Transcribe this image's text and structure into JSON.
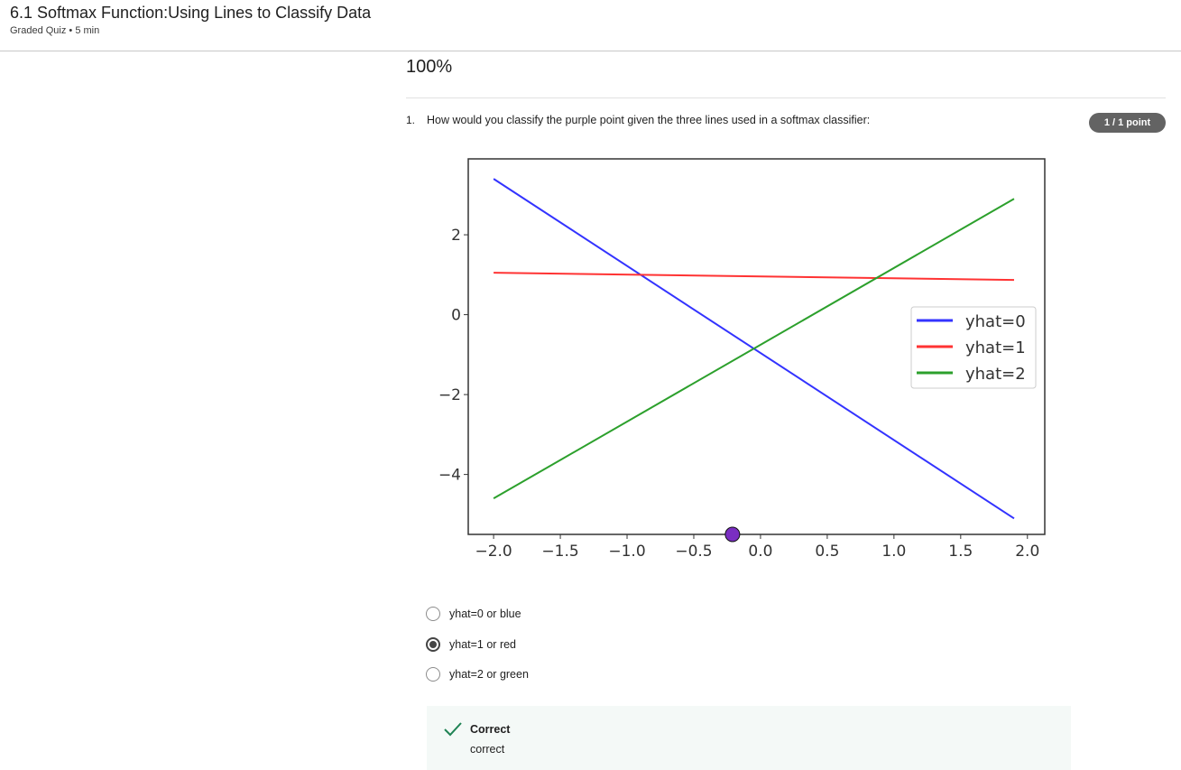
{
  "header": {
    "title": "6.1 Softmax Function:Using Lines to Classify Data",
    "subtitle": "Graded Quiz • 5 min"
  },
  "score": "100%",
  "question": {
    "number": "1.",
    "text": "How would you classify the purple point given the three lines used in a softmax classifier:",
    "points": "1 / 1 point"
  },
  "chart_data": {
    "type": "line",
    "title": "",
    "xlabel": "",
    "ylabel": "",
    "xlim": [
      -2.19,
      2.13
    ],
    "ylim": [
      -5.5,
      3.9
    ],
    "x_ticks": [
      -2.0,
      -1.5,
      -1.0,
      -0.5,
      0.0,
      0.5,
      1.0,
      1.5,
      2.0
    ],
    "x_tick_labels": [
      "−2.0",
      "−1.5",
      "−1.0",
      "−0.5",
      "0.0",
      "0.5",
      "1.0",
      "1.5",
      "2.0"
    ],
    "y_ticks": [
      2,
      0,
      -2,
      -4
    ],
    "y_tick_labels": [
      "2",
      "0",
      "−2",
      "−4"
    ],
    "legend_position": "center-right",
    "grid": false,
    "series": [
      {
        "name": "yhat=0",
        "color": "#3333ff",
        "x": [
          -2.0,
          1.9
        ],
        "y": [
          3.4,
          -5.1
        ]
      },
      {
        "name": "yhat=1",
        "color": "#ff3333",
        "x": [
          -2.0,
          1.9
        ],
        "y": [
          1.05,
          0.87
        ]
      },
      {
        "name": "yhat=2",
        "color": "#2ca02c",
        "x": [
          -2.0,
          1.9
        ],
        "y": [
          -4.6,
          2.9
        ]
      }
    ],
    "point": {
      "x": -0.21,
      "y": -5.5,
      "color": "#7a2ec2"
    }
  },
  "options": [
    {
      "label": "yhat=0 or blue",
      "selected": false
    },
    {
      "label": "yhat=1 or red",
      "selected": true
    },
    {
      "label": "yhat=2 or green",
      "selected": false
    }
  ],
  "feedback": {
    "title": "Correct",
    "text": "correct",
    "icon": "check-icon",
    "color": "#1f8354"
  }
}
